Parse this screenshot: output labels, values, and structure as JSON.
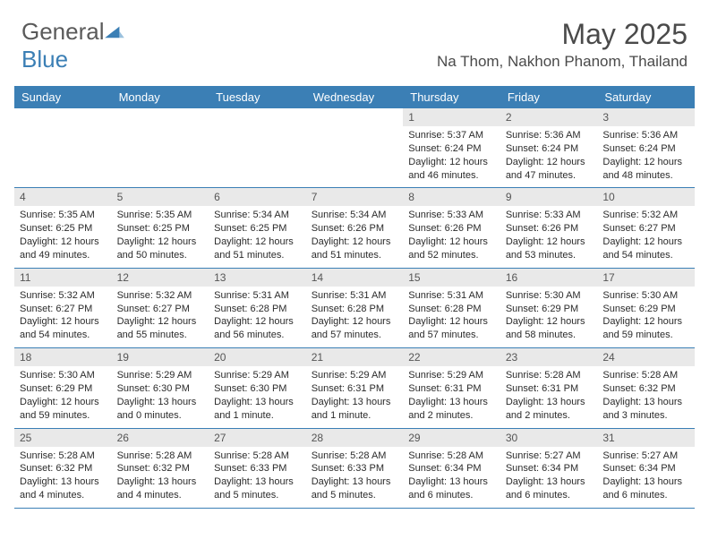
{
  "logo": {
    "word1": "General",
    "word2": "Blue"
  },
  "title": "May 2025",
  "location": "Na Thom, Nakhon Phanom, Thailand",
  "colors": {
    "header_bg": "#3b7fb5",
    "header_text": "#ffffff",
    "daynum_bg": "#e9e9e9",
    "row_border": "#3b7fb5",
    "text": "#2b2b2b"
  },
  "day_headers": [
    "Sunday",
    "Monday",
    "Tuesday",
    "Wednesday",
    "Thursday",
    "Friday",
    "Saturday"
  ],
  "weeks": [
    [
      {
        "empty": true
      },
      {
        "empty": true
      },
      {
        "empty": true
      },
      {
        "empty": true
      },
      {
        "day": "1",
        "sunrise": "Sunrise: 5:37 AM",
        "sunset": "Sunset: 6:24 PM",
        "daylight1": "Daylight: 12 hours",
        "daylight2": "and 46 minutes."
      },
      {
        "day": "2",
        "sunrise": "Sunrise: 5:36 AM",
        "sunset": "Sunset: 6:24 PM",
        "daylight1": "Daylight: 12 hours",
        "daylight2": "and 47 minutes."
      },
      {
        "day": "3",
        "sunrise": "Sunrise: 5:36 AM",
        "sunset": "Sunset: 6:24 PM",
        "daylight1": "Daylight: 12 hours",
        "daylight2": "and 48 minutes."
      }
    ],
    [
      {
        "day": "4",
        "sunrise": "Sunrise: 5:35 AM",
        "sunset": "Sunset: 6:25 PM",
        "daylight1": "Daylight: 12 hours",
        "daylight2": "and 49 minutes."
      },
      {
        "day": "5",
        "sunrise": "Sunrise: 5:35 AM",
        "sunset": "Sunset: 6:25 PM",
        "daylight1": "Daylight: 12 hours",
        "daylight2": "and 50 minutes."
      },
      {
        "day": "6",
        "sunrise": "Sunrise: 5:34 AM",
        "sunset": "Sunset: 6:25 PM",
        "daylight1": "Daylight: 12 hours",
        "daylight2": "and 51 minutes."
      },
      {
        "day": "7",
        "sunrise": "Sunrise: 5:34 AM",
        "sunset": "Sunset: 6:26 PM",
        "daylight1": "Daylight: 12 hours",
        "daylight2": "and 51 minutes."
      },
      {
        "day": "8",
        "sunrise": "Sunrise: 5:33 AM",
        "sunset": "Sunset: 6:26 PM",
        "daylight1": "Daylight: 12 hours",
        "daylight2": "and 52 minutes."
      },
      {
        "day": "9",
        "sunrise": "Sunrise: 5:33 AM",
        "sunset": "Sunset: 6:26 PM",
        "daylight1": "Daylight: 12 hours",
        "daylight2": "and 53 minutes."
      },
      {
        "day": "10",
        "sunrise": "Sunrise: 5:32 AM",
        "sunset": "Sunset: 6:27 PM",
        "daylight1": "Daylight: 12 hours",
        "daylight2": "and 54 minutes."
      }
    ],
    [
      {
        "day": "11",
        "sunrise": "Sunrise: 5:32 AM",
        "sunset": "Sunset: 6:27 PM",
        "daylight1": "Daylight: 12 hours",
        "daylight2": "and 54 minutes."
      },
      {
        "day": "12",
        "sunrise": "Sunrise: 5:32 AM",
        "sunset": "Sunset: 6:27 PM",
        "daylight1": "Daylight: 12 hours",
        "daylight2": "and 55 minutes."
      },
      {
        "day": "13",
        "sunrise": "Sunrise: 5:31 AM",
        "sunset": "Sunset: 6:28 PM",
        "daylight1": "Daylight: 12 hours",
        "daylight2": "and 56 minutes."
      },
      {
        "day": "14",
        "sunrise": "Sunrise: 5:31 AM",
        "sunset": "Sunset: 6:28 PM",
        "daylight1": "Daylight: 12 hours",
        "daylight2": "and 57 minutes."
      },
      {
        "day": "15",
        "sunrise": "Sunrise: 5:31 AM",
        "sunset": "Sunset: 6:28 PM",
        "daylight1": "Daylight: 12 hours",
        "daylight2": "and 57 minutes."
      },
      {
        "day": "16",
        "sunrise": "Sunrise: 5:30 AM",
        "sunset": "Sunset: 6:29 PM",
        "daylight1": "Daylight: 12 hours",
        "daylight2": "and 58 minutes."
      },
      {
        "day": "17",
        "sunrise": "Sunrise: 5:30 AM",
        "sunset": "Sunset: 6:29 PM",
        "daylight1": "Daylight: 12 hours",
        "daylight2": "and 59 minutes."
      }
    ],
    [
      {
        "day": "18",
        "sunrise": "Sunrise: 5:30 AM",
        "sunset": "Sunset: 6:29 PM",
        "daylight1": "Daylight: 12 hours",
        "daylight2": "and 59 minutes."
      },
      {
        "day": "19",
        "sunrise": "Sunrise: 5:29 AM",
        "sunset": "Sunset: 6:30 PM",
        "daylight1": "Daylight: 13 hours",
        "daylight2": "and 0 minutes."
      },
      {
        "day": "20",
        "sunrise": "Sunrise: 5:29 AM",
        "sunset": "Sunset: 6:30 PM",
        "daylight1": "Daylight: 13 hours",
        "daylight2": "and 1 minute."
      },
      {
        "day": "21",
        "sunrise": "Sunrise: 5:29 AM",
        "sunset": "Sunset: 6:31 PM",
        "daylight1": "Daylight: 13 hours",
        "daylight2": "and 1 minute."
      },
      {
        "day": "22",
        "sunrise": "Sunrise: 5:29 AM",
        "sunset": "Sunset: 6:31 PM",
        "daylight1": "Daylight: 13 hours",
        "daylight2": "and 2 minutes."
      },
      {
        "day": "23",
        "sunrise": "Sunrise: 5:28 AM",
        "sunset": "Sunset: 6:31 PM",
        "daylight1": "Daylight: 13 hours",
        "daylight2": "and 2 minutes."
      },
      {
        "day": "24",
        "sunrise": "Sunrise: 5:28 AM",
        "sunset": "Sunset: 6:32 PM",
        "daylight1": "Daylight: 13 hours",
        "daylight2": "and 3 minutes."
      }
    ],
    [
      {
        "day": "25",
        "sunrise": "Sunrise: 5:28 AM",
        "sunset": "Sunset: 6:32 PM",
        "daylight1": "Daylight: 13 hours",
        "daylight2": "and 4 minutes."
      },
      {
        "day": "26",
        "sunrise": "Sunrise: 5:28 AM",
        "sunset": "Sunset: 6:32 PM",
        "daylight1": "Daylight: 13 hours",
        "daylight2": "and 4 minutes."
      },
      {
        "day": "27",
        "sunrise": "Sunrise: 5:28 AM",
        "sunset": "Sunset: 6:33 PM",
        "daylight1": "Daylight: 13 hours",
        "daylight2": "and 5 minutes."
      },
      {
        "day": "28",
        "sunrise": "Sunrise: 5:28 AM",
        "sunset": "Sunset: 6:33 PM",
        "daylight1": "Daylight: 13 hours",
        "daylight2": "and 5 minutes."
      },
      {
        "day": "29",
        "sunrise": "Sunrise: 5:28 AM",
        "sunset": "Sunset: 6:34 PM",
        "daylight1": "Daylight: 13 hours",
        "daylight2": "and 6 minutes."
      },
      {
        "day": "30",
        "sunrise": "Sunrise: 5:27 AM",
        "sunset": "Sunset: 6:34 PM",
        "daylight1": "Daylight: 13 hours",
        "daylight2": "and 6 minutes."
      },
      {
        "day": "31",
        "sunrise": "Sunrise: 5:27 AM",
        "sunset": "Sunset: 6:34 PM",
        "daylight1": "Daylight: 13 hours",
        "daylight2": "and 6 minutes."
      }
    ]
  ]
}
